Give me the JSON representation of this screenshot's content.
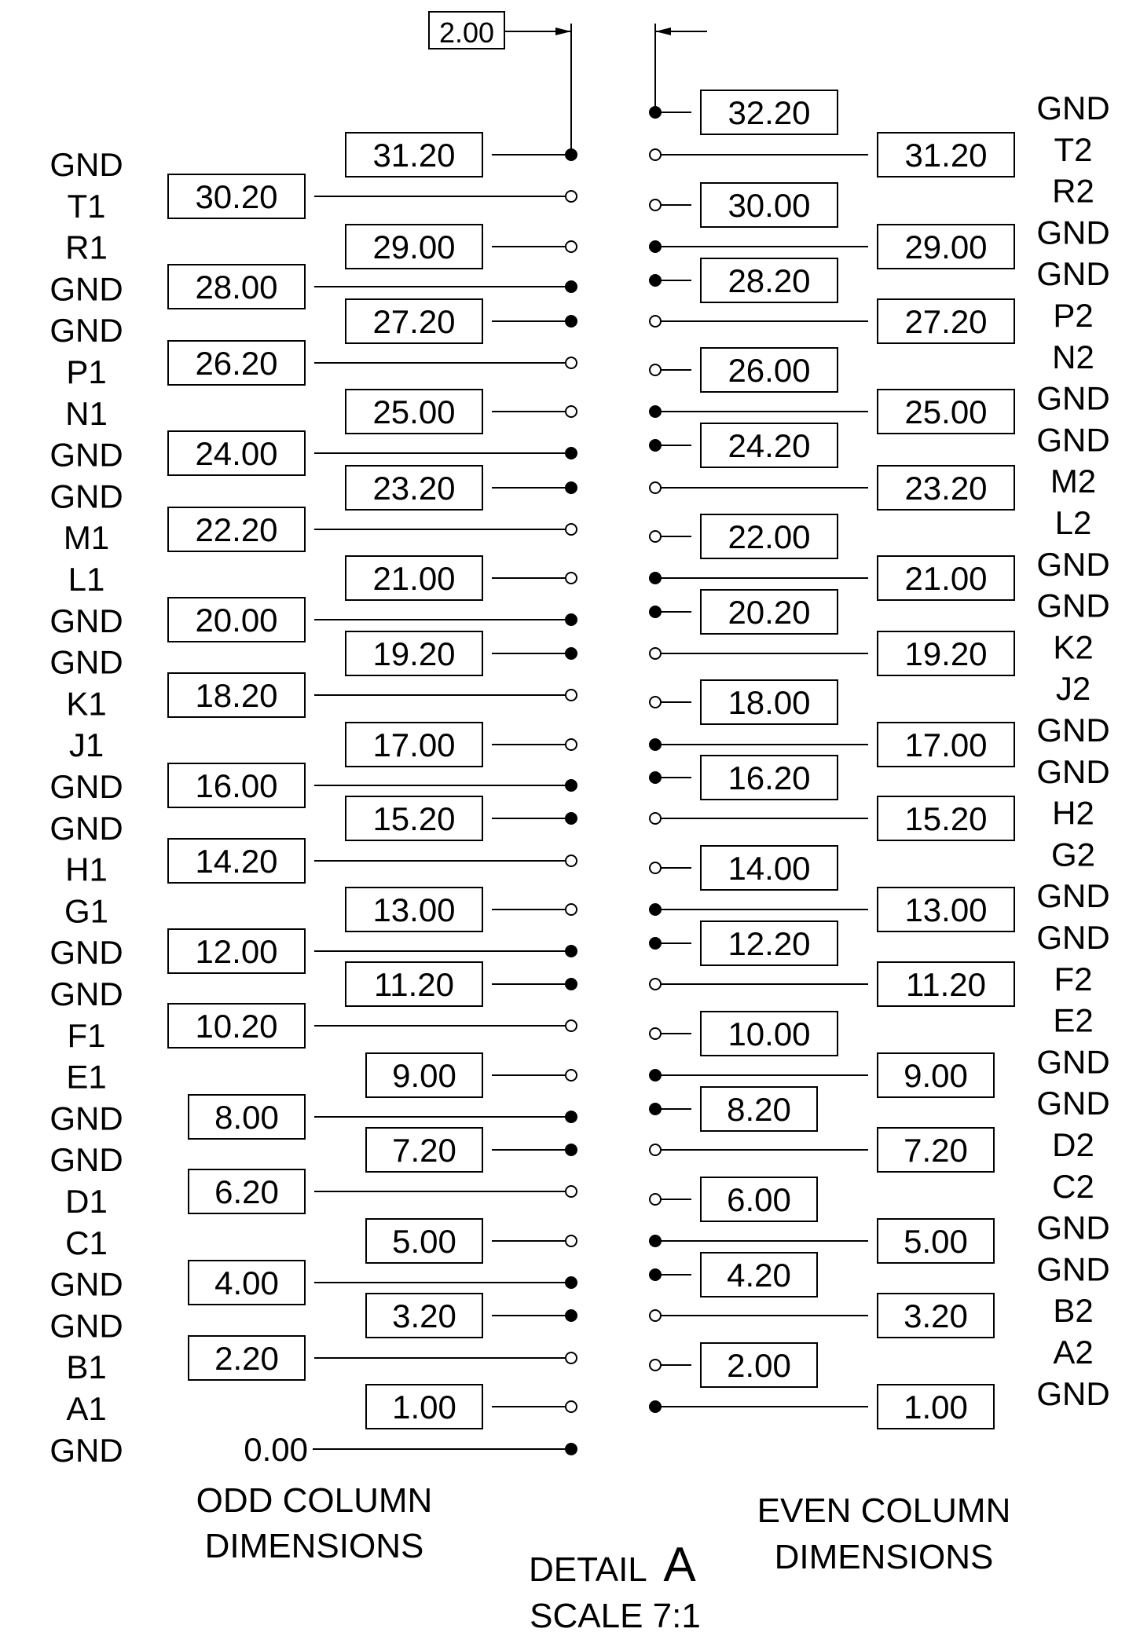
{
  "spacing_label": "2.00",
  "odd_signals": [
    "GND",
    "T1",
    "R1",
    "GND",
    "GND",
    "P1",
    "N1",
    "GND",
    "GND",
    "M1",
    "L1",
    "GND",
    "GND",
    "K1",
    "J1",
    "GND",
    "GND",
    "H1",
    "G1",
    "GND",
    "GND",
    "F1",
    "E1",
    "GND",
    "GND",
    "D1",
    "C1",
    "GND",
    "GND",
    "B1",
    "A1",
    "GND"
  ],
  "even_signals": [
    "GND",
    "T2",
    "R2",
    "GND",
    "GND",
    "P2",
    "N2",
    "GND",
    "GND",
    "M2",
    "L2",
    "GND",
    "GND",
    "K2",
    "J2",
    "GND",
    "GND",
    "H2",
    "G2",
    "GND",
    "GND",
    "F2",
    "E2",
    "GND",
    "GND",
    "D2",
    "C2",
    "GND",
    "GND",
    "B2",
    "A2",
    "GND"
  ],
  "odd_pins": [
    {
      "value": "31.20",
      "filled": true
    },
    {
      "value": "30.20",
      "filled": false
    },
    {
      "value": "29.00",
      "filled": false
    },
    {
      "value": "28.00",
      "filled": true
    },
    {
      "value": "27.20",
      "filled": true
    },
    {
      "value": "26.20",
      "filled": false
    },
    {
      "value": "25.00",
      "filled": false
    },
    {
      "value": "24.00",
      "filled": true
    },
    {
      "value": "23.20",
      "filled": true
    },
    {
      "value": "22.20",
      "filled": false
    },
    {
      "value": "21.00",
      "filled": false
    },
    {
      "value": "20.00",
      "filled": true
    },
    {
      "value": "19.20",
      "filled": true
    },
    {
      "value": "18.20",
      "filled": false
    },
    {
      "value": "17.00",
      "filled": false
    },
    {
      "value": "16.00",
      "filled": true
    },
    {
      "value": "15.20",
      "filled": true
    },
    {
      "value": "14.20",
      "filled": false
    },
    {
      "value": "13.00",
      "filled": false
    },
    {
      "value": "12.00",
      "filled": true
    },
    {
      "value": "11.20",
      "filled": true
    },
    {
      "value": "10.20",
      "filled": false
    },
    {
      "value": "9.00",
      "filled": false
    },
    {
      "value": "8.00",
      "filled": true
    },
    {
      "value": "7.20",
      "filled": true
    },
    {
      "value": "6.20",
      "filled": false
    },
    {
      "value": "5.00",
      "filled": false
    },
    {
      "value": "4.00",
      "filled": true
    },
    {
      "value": "3.20",
      "filled": true
    },
    {
      "value": "2.20",
      "filled": false
    },
    {
      "value": "1.00",
      "filled": false
    },
    {
      "value": "0.00",
      "filled": true
    }
  ],
  "even_pins": [
    {
      "value": "32.20",
      "filled": true
    },
    {
      "value": "31.20",
      "filled": false
    },
    {
      "value": "30.00",
      "filled": false
    },
    {
      "value": "29.00",
      "filled": true
    },
    {
      "value": "28.20",
      "filled": true
    },
    {
      "value": "27.20",
      "filled": false
    },
    {
      "value": "26.00",
      "filled": false
    },
    {
      "value": "25.00",
      "filled": true
    },
    {
      "value": "24.20",
      "filled": true
    },
    {
      "value": "23.20",
      "filled": false
    },
    {
      "value": "22.00",
      "filled": false
    },
    {
      "value": "21.00",
      "filled": true
    },
    {
      "value": "20.20",
      "filled": true
    },
    {
      "value": "19.20",
      "filled": false
    },
    {
      "value": "18.00",
      "filled": false
    },
    {
      "value": "17.00",
      "filled": true
    },
    {
      "value": "16.20",
      "filled": true
    },
    {
      "value": "15.20",
      "filled": false
    },
    {
      "value": "14.00",
      "filled": false
    },
    {
      "value": "13.00",
      "filled": true
    },
    {
      "value": "12.20",
      "filled": true
    },
    {
      "value": "11.20",
      "filled": false
    },
    {
      "value": "10.00",
      "filled": false
    },
    {
      "value": "9.00",
      "filled": true
    },
    {
      "value": "8.20",
      "filled": true
    },
    {
      "value": "7.20",
      "filled": false
    },
    {
      "value": "6.00",
      "filled": false
    },
    {
      "value": "5.00",
      "filled": true
    },
    {
      "value": "4.20",
      "filled": true
    },
    {
      "value": "3.20",
      "filled": false
    },
    {
      "value": "2.00",
      "filled": false
    },
    {
      "value": "1.00",
      "filled": true
    }
  ],
  "captions": {
    "odd_line1": "ODD COLUMN",
    "odd_line2": "DIMENSIONS",
    "even_line1": "EVEN COLUMN",
    "even_line2": "DIMENSIONS",
    "detail_word": "DETAIL",
    "detail_letter": "A",
    "scale": "SCALE 7:1"
  }
}
